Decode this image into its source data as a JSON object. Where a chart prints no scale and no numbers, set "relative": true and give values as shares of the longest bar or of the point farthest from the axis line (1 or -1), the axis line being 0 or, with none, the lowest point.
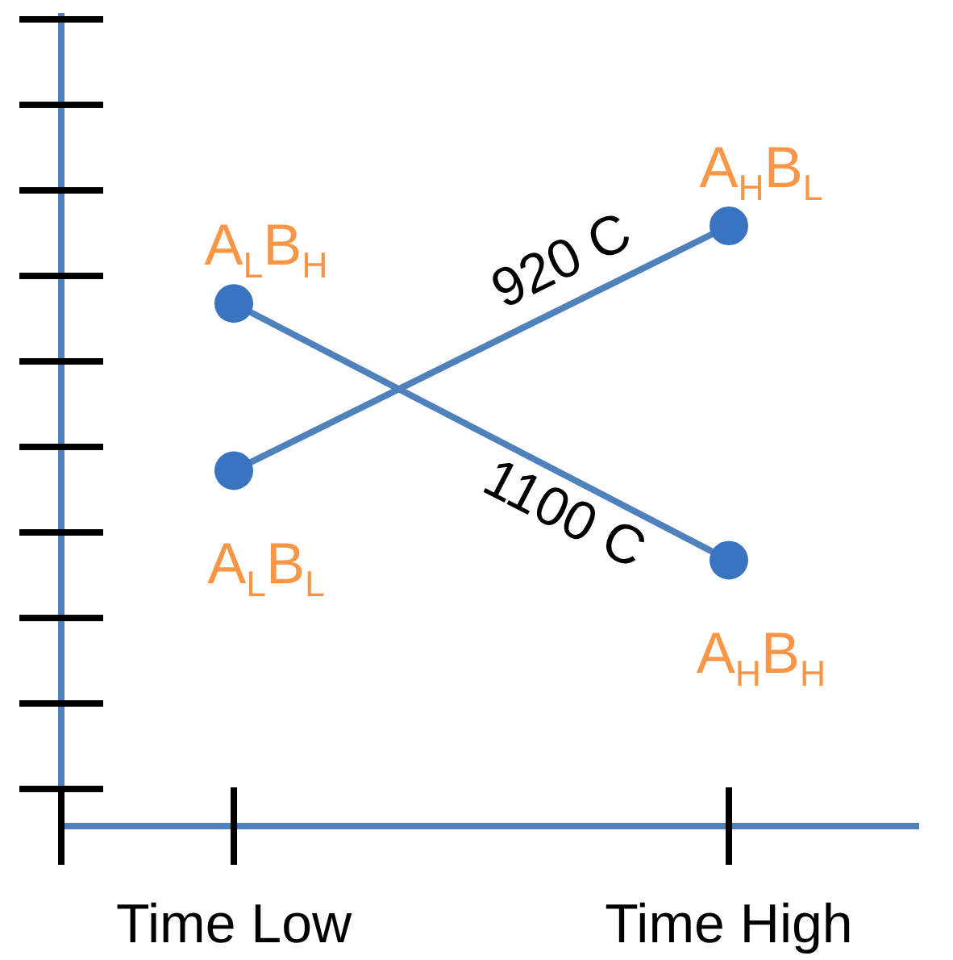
{
  "chart_data": {
    "type": "line",
    "relative": true,
    "categories": [
      "Time Low",
      "Time High"
    ],
    "marker": "circle",
    "line_style": "solid",
    "legend": false,
    "grid": false,
    "series": [
      {
        "name": "920 C",
        "color": "#4f81bd",
        "values": [
          0.59,
          1
        ]
      },
      {
        "name": "1100 C",
        "color": "#4f81bd",
        "values": [
          0.87,
          0.44
        ]
      }
    ],
    "annotations": [
      {
        "text": "A$_{L}$B$_{H}$",
        "x": "Time Low",
        "y": 0.87
      },
      {
        "text": "A$_{L}$B$_{L}$",
        "x": "Time Low",
        "y": 0.59
      },
      {
        "text": "A$_{H}$B$_{L}$",
        "x": "Time High",
        "y": 1
      },
      {
        "text": "A$_{H}$B$_{H}$",
        "x": "Time High",
        "y": 0.44
      }
    ]
  }
}
